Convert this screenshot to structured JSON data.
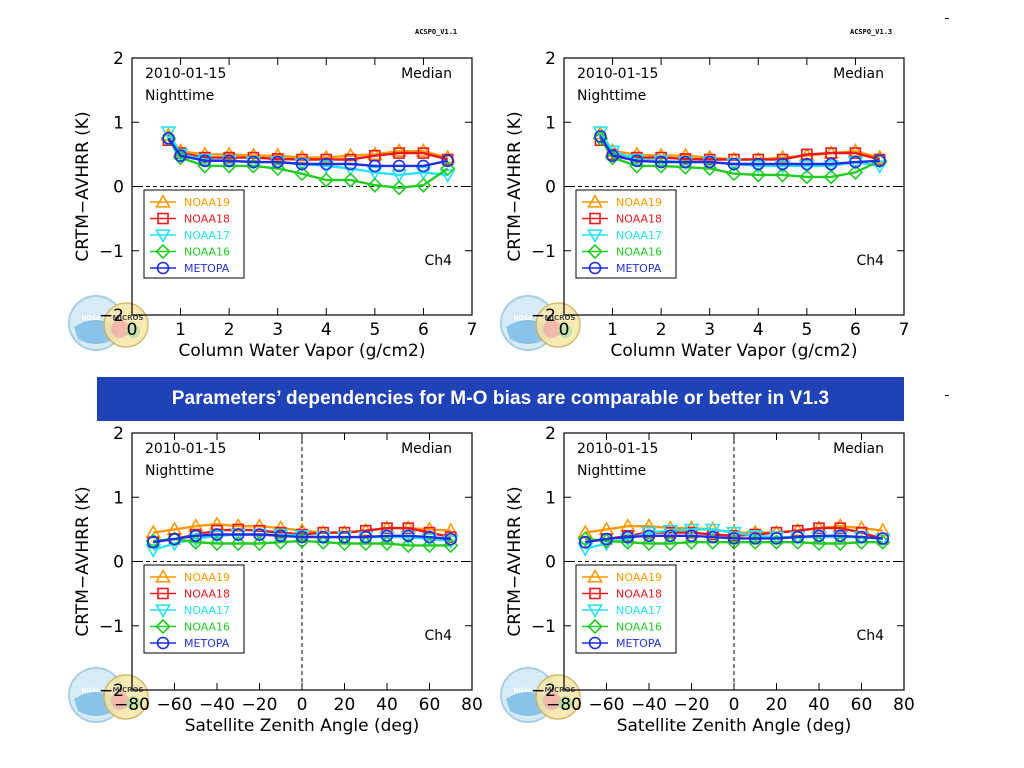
{
  "slide": {
    "banner": "Parameters’ dependencies for M-O bias are comparable or better in V1.3",
    "version_tags": [
      "ACSPO_V1.1",
      "ACSPO_V1.3"
    ]
  },
  "legend_colors": {
    "NOAA19": "#ff9900",
    "NOAA18": "#e8181c",
    "NOAA17": "#22e4f4",
    "NOAA16": "#22cc22",
    "METOPA": "#1f2fe6"
  },
  "logo_labels": {
    "noaa": "NOAA",
    "micros": "MICROS"
  },
  "chart_data": [
    {
      "type": "line",
      "date": "2010-01-15",
      "period": "Nighttime",
      "stat": "Median",
      "channel": "Ch4",
      "ylabel": "CRTM−AVHRR (K)",
      "xlabel": "Column Water Vapor (g/cm2)",
      "xlim": [
        0,
        7
      ],
      "ylim": [
        -2,
        2
      ],
      "xticks": [
        0,
        1,
        2,
        3,
        4,
        5,
        6,
        7
      ],
      "yticks": [
        -2,
        -1,
        0,
        1,
        2
      ],
      "zero_line": "horizontal",
      "x": [
        0.75,
        1.0,
        1.5,
        2.0,
        2.5,
        3.0,
        3.5,
        4.0,
        4.5,
        5.0,
        5.5,
        6.0,
        6.5
      ],
      "series": [
        {
          "name": "NOAA19",
          "marker": "triangle-up",
          "values": [
            0.8,
            0.55,
            0.5,
            0.5,
            0.48,
            0.48,
            0.45,
            0.45,
            0.48,
            0.5,
            0.55,
            0.55,
            0.45
          ]
        },
        {
          "name": "NOAA18",
          "marker": "square",
          "values": [
            0.72,
            0.52,
            0.45,
            0.45,
            0.45,
            0.43,
            0.42,
            0.42,
            0.42,
            0.48,
            0.52,
            0.52,
            0.42
          ]
        },
        {
          "name": "NOAA17",
          "marker": "triangle-down",
          "values": [
            0.85,
            0.5,
            0.42,
            0.4,
            0.38,
            0.38,
            0.35,
            0.32,
            0.28,
            0.22,
            0.18,
            0.22,
            0.18
          ]
        },
        {
          "name": "NOAA16",
          "marker": "diamond",
          "values": [
            0.75,
            0.45,
            0.32,
            0.32,
            0.32,
            0.28,
            0.2,
            0.1,
            0.1,
            0.02,
            -0.02,
            0.02,
            0.28
          ]
        },
        {
          "name": "METOPA",
          "marker": "circle",
          "values": [
            0.75,
            0.48,
            0.4,
            0.4,
            0.38,
            0.38,
            0.35,
            0.35,
            0.35,
            0.32,
            0.32,
            0.32,
            0.4
          ]
        }
      ]
    },
    {
      "type": "line",
      "date": "2010-01-15",
      "period": "Nighttime",
      "stat": "Median",
      "channel": "Ch4",
      "ylabel": "CRTM−AVHRR (K)",
      "xlabel": "Column Water Vapor (g/cm2)",
      "xlim": [
        0,
        7
      ],
      "ylim": [
        -2,
        2
      ],
      "xticks": [
        0,
        1,
        2,
        3,
        4,
        5,
        6,
        7
      ],
      "yticks": [
        -2,
        -1,
        0,
        1,
        2
      ],
      "zero_line": "horizontal",
      "x": [
        0.75,
        1.0,
        1.5,
        2.0,
        2.5,
        3.0,
        3.5,
        4.0,
        4.5,
        5.0,
        5.5,
        6.0,
        6.5
      ],
      "series": [
        {
          "name": "NOAA19",
          "marker": "triangle-up",
          "values": [
            0.82,
            0.55,
            0.5,
            0.48,
            0.48,
            0.45,
            0.42,
            0.42,
            0.45,
            0.48,
            0.52,
            0.55,
            0.45
          ]
        },
        {
          "name": "NOAA18",
          "marker": "square",
          "values": [
            0.72,
            0.5,
            0.45,
            0.45,
            0.43,
            0.42,
            0.42,
            0.42,
            0.42,
            0.5,
            0.52,
            0.52,
            0.42
          ]
        },
        {
          "name": "NOAA17",
          "marker": "triangle-down",
          "values": [
            0.85,
            0.55,
            0.42,
            0.4,
            0.38,
            0.38,
            0.35,
            0.32,
            0.32,
            0.32,
            0.32,
            0.38,
            0.32
          ]
        },
        {
          "name": "NOAA16",
          "marker": "diamond",
          "values": [
            0.75,
            0.45,
            0.32,
            0.32,
            0.3,
            0.28,
            0.2,
            0.18,
            0.18,
            0.15,
            0.15,
            0.22,
            0.4
          ]
        },
        {
          "name": "METOPA",
          "marker": "circle",
          "values": [
            0.78,
            0.48,
            0.4,
            0.38,
            0.38,
            0.38,
            0.35,
            0.35,
            0.35,
            0.35,
            0.35,
            0.38,
            0.4
          ]
        }
      ]
    },
    {
      "type": "line",
      "date": "2010-01-15",
      "period": "Nighttime",
      "stat": "Median",
      "channel": "Ch4",
      "ylabel": "CRTM−AVHRR (K)",
      "xlabel": "Satellite Zenith Angle (deg)",
      "xlim": [
        -80,
        80
      ],
      "ylim": [
        -2,
        2
      ],
      "xticks": [
        -80,
        -60,
        -40,
        -20,
        0,
        20,
        40,
        60,
        80
      ],
      "yticks": [
        -2,
        -1,
        0,
        1,
        2
      ],
      "zero_line": "cross",
      "x": [
        -70,
        -60,
        -50,
        -40,
        -30,
        -20,
        -10,
        0,
        10,
        20,
        30,
        40,
        50,
        60,
        70
      ],
      "series": [
        {
          "name": "NOAA19",
          "marker": "triangle-up",
          "values": [
            0.45,
            0.5,
            0.55,
            0.58,
            0.55,
            0.55,
            0.52,
            0.48,
            0.45,
            0.45,
            0.48,
            0.52,
            0.52,
            0.5,
            0.48
          ]
        },
        {
          "name": "NOAA18",
          "marker": "square",
          "values": [
            0.3,
            0.35,
            0.42,
            0.48,
            0.5,
            0.48,
            0.45,
            0.42,
            0.45,
            0.45,
            0.48,
            0.52,
            0.52,
            0.45,
            0.38
          ]
        },
        {
          "name": "NOAA17",
          "marker": "triangle-down",
          "values": [
            0.18,
            0.28,
            0.35,
            0.4,
            0.42,
            0.42,
            0.42,
            0.4,
            0.38,
            0.38,
            0.38,
            0.38,
            0.38,
            0.35,
            0.32
          ]
        },
        {
          "name": "NOAA16",
          "marker": "diamond",
          "values": [
            0.32,
            0.35,
            0.3,
            0.28,
            0.28,
            0.28,
            0.3,
            0.32,
            0.3,
            0.28,
            0.28,
            0.28,
            0.25,
            0.25,
            0.25
          ]
        },
        {
          "name": "METOPA",
          "marker": "circle",
          "values": [
            0.3,
            0.35,
            0.4,
            0.42,
            0.42,
            0.42,
            0.4,
            0.38,
            0.38,
            0.38,
            0.38,
            0.4,
            0.4,
            0.38,
            0.35
          ]
        }
      ]
    },
    {
      "type": "line",
      "date": "2010-01-15",
      "period": "Nighttime",
      "stat": "Median",
      "channel": "Ch4",
      "ylabel": "CRTM−AVHRR (K)",
      "xlabel": "Satellite Zenith Angle (deg)",
      "xlim": [
        -80,
        80
      ],
      "ylim": [
        -2,
        2
      ],
      "xticks": [
        -80,
        -60,
        -40,
        -20,
        0,
        20,
        40,
        60,
        80
      ],
      "yticks": [
        -2,
        -1,
        0,
        1,
        2
      ],
      "zero_line": "cross",
      "x": [
        -70,
        -60,
        -50,
        -40,
        -30,
        -20,
        -10,
        0,
        10,
        20,
        30,
        40,
        50,
        60,
        70
      ],
      "series": [
        {
          "name": "NOAA19",
          "marker": "triangle-up",
          "values": [
            0.45,
            0.5,
            0.55,
            0.55,
            0.52,
            0.52,
            0.5,
            0.45,
            0.45,
            0.45,
            0.48,
            0.52,
            0.55,
            0.52,
            0.48
          ]
        },
        {
          "name": "NOAA18",
          "marker": "square",
          "values": [
            0.3,
            0.35,
            0.4,
            0.45,
            0.45,
            0.45,
            0.42,
            0.4,
            0.42,
            0.45,
            0.48,
            0.52,
            0.52,
            0.45,
            0.35
          ]
        },
        {
          "name": "NOAA17",
          "marker": "triangle-down",
          "values": [
            0.2,
            0.28,
            0.35,
            0.45,
            0.48,
            0.5,
            0.5,
            0.45,
            0.4,
            0.38,
            0.38,
            0.38,
            0.38,
            0.38,
            0.35
          ]
        },
        {
          "name": "NOAA16",
          "marker": "diamond",
          "values": [
            0.35,
            0.32,
            0.3,
            0.28,
            0.28,
            0.3,
            0.3,
            0.3,
            0.3,
            0.3,
            0.3,
            0.28,
            0.28,
            0.3,
            0.3
          ]
        },
        {
          "name": "METOPA",
          "marker": "circle",
          "values": [
            0.3,
            0.35,
            0.38,
            0.4,
            0.4,
            0.4,
            0.38,
            0.36,
            0.36,
            0.36,
            0.38,
            0.4,
            0.4,
            0.38,
            0.36
          ]
        }
      ]
    }
  ]
}
